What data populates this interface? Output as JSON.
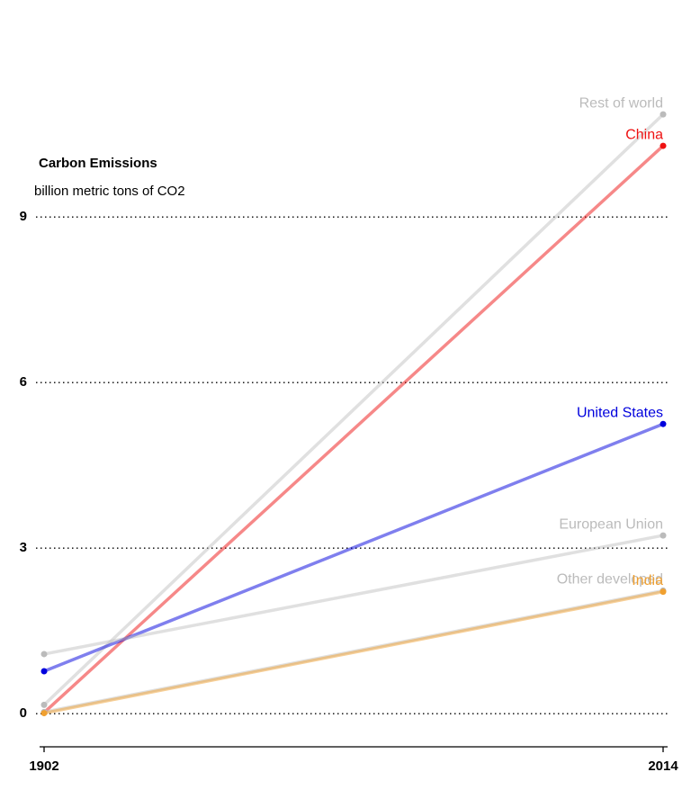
{
  "chart_data": {
    "type": "slope",
    "title": "Carbon Emissions",
    "subtitle": "billion metric tons of CO2",
    "x": [
      1902,
      2014
    ],
    "xlim": [
      1902,
      2014
    ],
    "xticks": [
      1902,
      2014
    ],
    "ylim": [
      -0.6,
      12.9
    ],
    "yticks": [
      0,
      3,
      6,
      9
    ],
    "grid": true,
    "series": [
      {
        "name": "Rest of world",
        "color": "#bbbbbb",
        "values": [
          0.16,
          10.86
        ]
      },
      {
        "name": "China",
        "color": "#ee1111",
        "values": [
          0.02,
          10.29
        ]
      },
      {
        "name": "United States",
        "color": "#0000dd",
        "values": [
          0.77,
          5.25
        ]
      },
      {
        "name": "European Union",
        "color": "#bbbbbb",
        "values": [
          1.08,
          3.23
        ]
      },
      {
        "name": "Other developed",
        "color": "#bbbbbb",
        "values": [
          0.03,
          2.23
        ]
      },
      {
        "name": "India",
        "color": "#f0a030",
        "values": [
          0.01,
          2.21
        ]
      }
    ]
  }
}
